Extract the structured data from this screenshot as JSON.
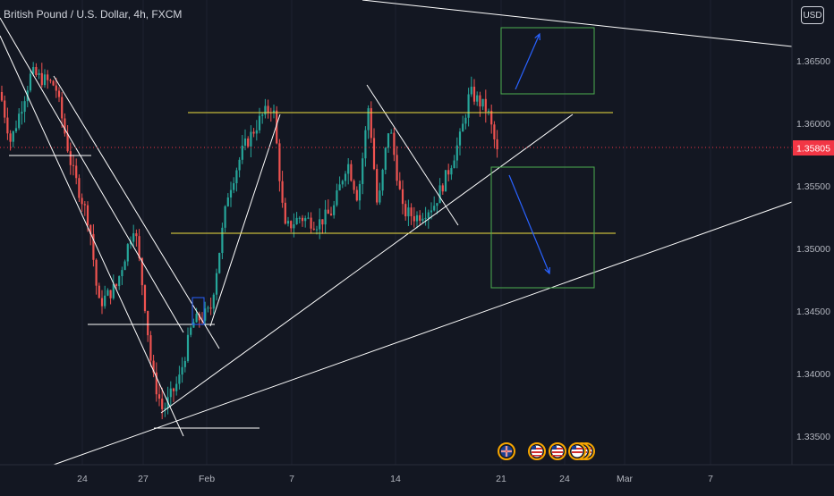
{
  "header": {
    "symbol_title": "British Pound / U.S. Dollar, 4h, FXCM",
    "currency": "USD"
  },
  "price_axis": {
    "ticks": [
      "1.36500",
      "1.36000",
      "1.35500",
      "1.35000",
      "1.34500",
      "1.34000",
      "1.33500"
    ],
    "current_price": "1.35805",
    "current_price_color": "#f23645"
  },
  "time_axis": {
    "ticks": [
      "24",
      "27",
      "Feb",
      "7",
      "14",
      "21",
      "24",
      "Mar",
      "7"
    ]
  },
  "colors": {
    "background": "#131722",
    "bull_candle": "#26a69a",
    "bear_candle": "#ef5350",
    "trend_line": "#ffffff",
    "horizontal_level": "#f0e040",
    "box_border": "#4caf50",
    "arrow": "#2962ff"
  },
  "event_icons": [
    "uk-flag-icon",
    "us-flag-icon",
    "us-flag-icon",
    "us-flag-icon"
  ],
  "chart_data": {
    "type": "candlestick",
    "ylim": [
      1.333,
      1.369
    ],
    "y_ticks": [
      1.365,
      1.36,
      1.355,
      1.35,
      1.345,
      1.34,
      1.335
    ],
    "current_price": 1.35805,
    "horizontal_levels": [
      1.3607,
      1.3512
    ],
    "trend_lines": "white drawn lines: descending channel, support line from late Jan, rising trendline, resistance line from top-right",
    "projection_boxes": [
      "up-target box above 1.3625",
      "down-target box 1.3472–1.3568"
    ]
  }
}
